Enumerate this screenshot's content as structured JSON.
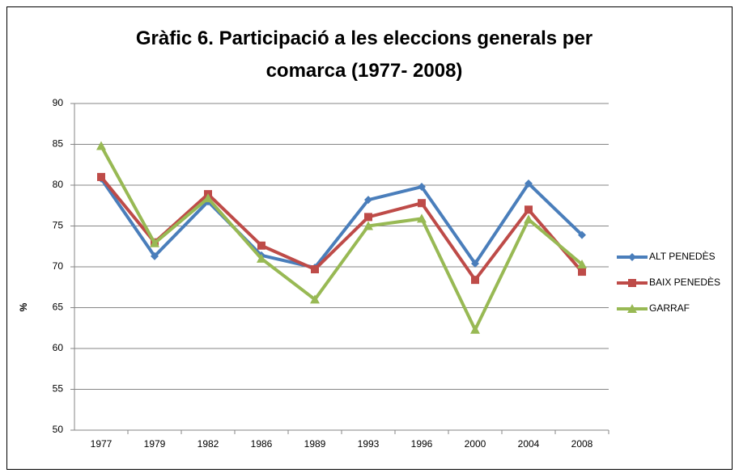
{
  "chart_data": {
    "type": "line",
    "title": "Gràfic 6. Participació a les eleccions generals per comarca (1977- 2008)",
    "y_label": "%",
    "categories": [
      "1977",
      "1979",
      "1982",
      "1986",
      "1989",
      "1993",
      "1996",
      "2000",
      "2004",
      "2008"
    ],
    "series": [
      {
        "name": "ALT PENEDÈS",
        "color": "#4a7ebb",
        "marker": "diamond",
        "values": [
          80.8,
          71.3,
          78.0,
          71.4,
          69.9,
          78.2,
          79.8,
          70.4,
          80.2,
          73.9
        ]
      },
      {
        "name": "BAIX PENEDÈS",
        "color": "#be4b48",
        "marker": "square",
        "values": [
          81.0,
          73.0,
          78.9,
          72.6,
          69.7,
          76.1,
          77.8,
          68.4,
          77.0,
          69.4
        ]
      },
      {
        "name": "GARRAF",
        "color": "#98b954",
        "marker": "triangle",
        "values": [
          84.8,
          72.9,
          78.4,
          71.0,
          66.0,
          75.0,
          75.9,
          62.3,
          75.8,
          70.3
        ]
      }
    ],
    "ylim": [
      50,
      90
    ],
    "yticks": [
      50,
      55,
      60,
      65,
      70,
      75,
      80,
      85,
      90
    ],
    "grid": true,
    "legend": "right"
  }
}
